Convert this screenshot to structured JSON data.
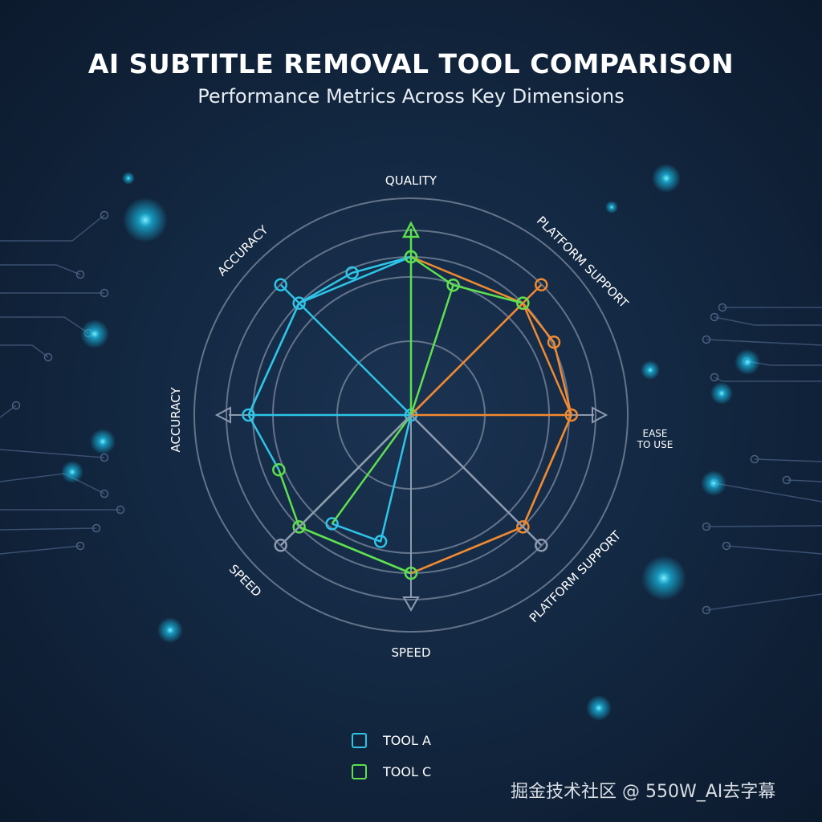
{
  "title": "AI SUBTITLE REMOVAL TOOL COMPARISON",
  "subtitle": "Performance Metrics Across Key Dimensions",
  "watermark": "掘金技术社区 @ 550W_AI去字幕",
  "colors": {
    "background": "#132842",
    "grid": "#7e8ca0",
    "tool_a": "#2ec4e6",
    "tool_c": "#5ee04f",
    "orange_series": "#f08a30",
    "gray_series": "#8e9bb0"
  },
  "chart_data": {
    "type": "radar",
    "title": "AI SUBTITLE REMOVAL TOOL COMPARISON",
    "subtitle": "Performance Metrics Across Key Dimensions",
    "axes": [
      "QUALITY",
      "PLATFORM SUPPORT",
      "EASE TO USE",
      "PLATFORM SUPPORT",
      "SPEED",
      "SPEED",
      "ACCURACY",
      "ACCURACY"
    ],
    "axis_label_ease_lines": [
      "EASE",
      "TO USE"
    ],
    "value_range": [
      0,
      10
    ],
    "grid": true,
    "legend": {
      "placement": "bottom-center",
      "entries": [
        "TOOL A",
        "TOOL C"
      ]
    },
    "note_position_units": "position = axis index (0 = QUALITY, increasing clockwise, fractional between axes)",
    "series": [
      {
        "name": "TOOL A",
        "color": "#2ec4e6",
        "outline": [
          [
            0,
            7.3
          ],
          [
            7.5,
            7.1
          ],
          [
            7,
            7.3
          ],
          [
            6,
            7.5
          ],
          [
            5.5,
            6.6
          ]
        ],
        "outline2": [
          [
            0,
            7.3
          ],
          [
            7,
            7.3
          ],
          [
            6,
            7.5
          ]
        ],
        "spokes": [
          [
            [
              7,
              8.5
            ]
          ],
          [
            [
              6,
              7.5
            ]
          ],
          [
            [
              4.3,
              6.0
            ],
            [
              4.8,
              6.2
            ]
          ]
        ],
        "markers": [
          [
            0,
            7.3
          ],
          [
            7.5,
            7.1
          ],
          [
            7,
            7.3
          ],
          [
            7,
            8.5
          ],
          [
            6,
            7.5
          ],
          [
            4.8,
            6.2
          ],
          [
            4.3,
            6.0
          ],
          [
            0,
            0
          ]
        ]
      },
      {
        "name": "",
        "color": "#f08a30",
        "outline": [
          [
            0,
            7.3
          ],
          [
            1,
            7.3
          ],
          [
            1.4,
            7.4
          ],
          [
            2,
            7.4
          ],
          [
            3,
            7.3
          ],
          [
            4,
            7.3
          ]
        ],
        "outline2": [
          [
            1,
            7.3
          ],
          [
            2,
            7.4
          ],
          [
            3,
            7.3
          ],
          [
            4,
            7.3
          ]
        ],
        "spokes": [
          [
            [
              1,
              7.3
            ]
          ],
          [
            [
              2,
              7.4
            ]
          ],
          [
            [
              1,
              8.5
            ]
          ]
        ],
        "markers": [
          [
            1,
            8.5
          ],
          [
            1,
            7.3
          ],
          [
            1.4,
            7.4
          ],
          [
            2,
            7.4
          ],
          [
            3,
            7.3
          ]
        ]
      },
      {
        "name": "TOOL C",
        "color": "#5ee04f",
        "outline": [
          [
            0,
            7.3
          ],
          [
            0.4,
            6.3
          ],
          [
            1,
            7.3
          ]
        ],
        "outline2": [
          [
            5.5,
            6.6
          ],
          [
            5,
            7.3
          ],
          [
            4,
            7.3
          ]
        ],
        "outline3": [
          [
            5,
            7.3
          ],
          [
            4,
            7.3
          ]
        ],
        "spokes": [
          [
            [
              0,
              8.6
            ]
          ],
          [
            [
              0.4,
              6.3
            ]
          ],
          [
            [
              5,
              7.3
            ]
          ],
          [
            [
              4.8,
              6.2
            ]
          ]
        ],
        "markers": [
          [
            0,
            7.3
          ],
          [
            0.4,
            6.3
          ],
          [
            1,
            7.3
          ],
          [
            5.5,
            6.6
          ],
          [
            5,
            7.3
          ],
          [
            4,
            7.3
          ]
        ]
      },
      {
        "name": "",
        "color": "#8e9bb0",
        "outline": [],
        "spokes": [
          [
            [
              3,
              8.5
            ]
          ],
          [
            [
              5,
              8.5
            ]
          ]
        ],
        "markers": [
          [
            3,
            8.5
          ],
          [
            5,
            8.5
          ]
        ]
      }
    ]
  }
}
